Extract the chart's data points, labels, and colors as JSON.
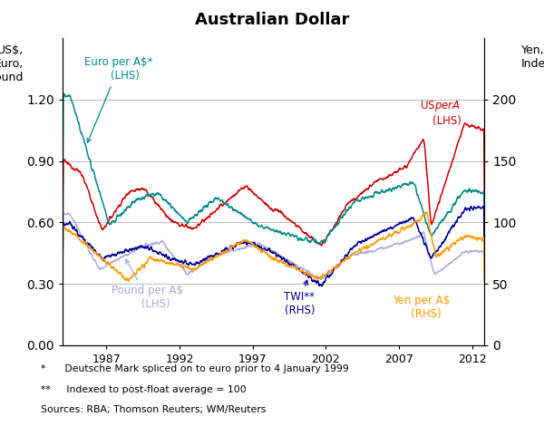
{
  "title": "Australian Dollar",
  "ylabel_left": "US$,\nEuro,\nPound",
  "ylabel_right": "Yen,\nIndex",
  "xlim": [
    1984.0,
    2012.83
  ],
  "ylim_left": [
    0.0,
    1.5
  ],
  "ylim_right": [
    0.0,
    250
  ],
  "yticks_left": [
    0.0,
    0.3,
    0.6,
    0.9,
    1.2
  ],
  "yticks_right": [
    0,
    50,
    100,
    150,
    200
  ],
  "xticks": [
    1987,
    1992,
    1997,
    2002,
    2007,
    2012
  ],
  "colors": {
    "usd": "#cc0000",
    "euro": "#008888",
    "pound": "#aaaadd",
    "yen": "#ff9900",
    "twi": "#000099"
  },
  "footnotes": [
    "*      Deutsche Mark spliced on to euro prior to 4 January 1999",
    "**     Indexed to post-float average = 100",
    "Sources: RBA; Thomson Reuters; WM/Reuters"
  ],
  "background_color": "#ffffff",
  "grid_color": "#bbbbbb"
}
